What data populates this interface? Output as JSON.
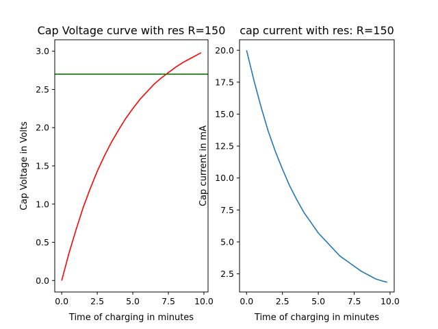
{
  "chart_data": [
    {
      "type": "line",
      "title": "Cap Voltage curve with res R=150",
      "xlabel": "Time of charging in minutes",
      "ylabel": "Cap Voltage in Volts",
      "xlim": [
        -0.49,
        10.29
      ],
      "ylim": [
        -0.15,
        3.15
      ],
      "xticks": [
        "0.0",
        "2.5",
        "5.0",
        "7.5",
        "10.0"
      ],
      "yticks": [
        "0.0",
        "0.5",
        "1.0",
        "1.5",
        "2.0",
        "2.5",
        "3.0"
      ],
      "grid": false,
      "series": [
        {
          "color": "#ff0000",
          "x": [
            0,
            0.5,
            1,
            1.5,
            2,
            2.5,
            3,
            3.5,
            4,
            4.5,
            5,
            5.5,
            6,
            6.5,
            7,
            7.5,
            8,
            8.5,
            9,
            9.5,
            9.8
          ],
          "y": [
            0,
            0.35,
            0.66,
            0.95,
            1.2,
            1.43,
            1.63,
            1.81,
            1.97,
            2.12,
            2.25,
            2.37,
            2.47,
            2.57,
            2.65,
            2.72,
            2.79,
            2.85,
            2.9,
            2.95,
            2.98
          ]
        },
        {
          "color": "#008000",
          "x": [
            -0.49,
            10.29
          ],
          "y": [
            2.7,
            2.7
          ]
        }
      ]
    },
    {
      "type": "line",
      "title": "cap current with res: R=150",
      "xlabel": "Time of charging in minutes",
      "ylabel": "Cap current in mA",
      "xlim": [
        -0.49,
        10.29
      ],
      "ylim": [
        1.08,
        20.82
      ],
      "xticks": [
        "0.0",
        "2.5",
        "5.0",
        "7.5",
        "10.0"
      ],
      "yticks": [
        "2.5",
        "5.0",
        "7.5",
        "10.0",
        "12.5",
        "15.0",
        "17.5",
        "20.0"
      ],
      "grid": false,
      "series": [
        {
          "color": "#1f77b4",
          "x": [
            0,
            0.5,
            1,
            1.5,
            2,
            2.5,
            3,
            3.5,
            4,
            4.5,
            5,
            5.5,
            6,
            6.5,
            7,
            7.5,
            8,
            8.5,
            9,
            9.5,
            9.8
          ],
          "y": [
            20,
            17.7,
            15.6,
            13.7,
            12.1,
            10.7,
            9.4,
            8.3,
            7.3,
            6.5,
            5.7,
            5.1,
            4.5,
            3.9,
            3.5,
            3.1,
            2.7,
            2.4,
            2.1,
            1.93,
            1.84
          ]
        }
      ]
    }
  ]
}
